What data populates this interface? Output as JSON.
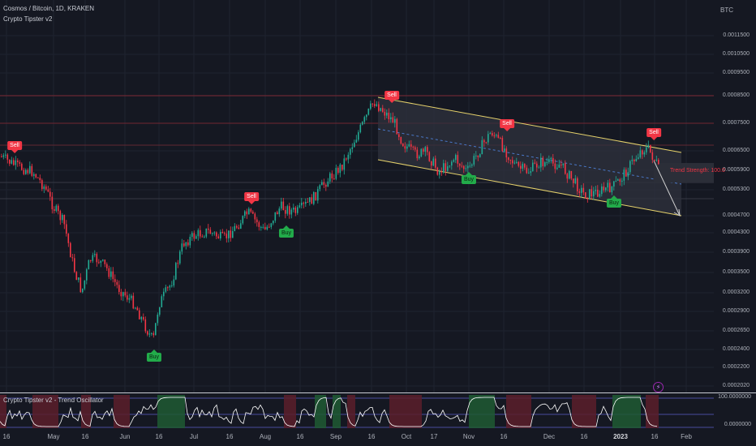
{
  "header": {
    "symbol_line": "Cosmos / Bitcoin, 1D, KRAKEN",
    "indicator_name": "Crypto Tipster v2"
  },
  "price_axis": {
    "currency": "BTC",
    "labels": [
      "0.0011500",
      "0.0010500",
      "0.0009500",
      "0.0008500",
      "0.0007500",
      "0.0006500",
      "0.0005900",
      "0.0005300",
      "0.0004700",
      "0.0004300",
      "0.0003900",
      "0.0003500",
      "0.0003200",
      "0.0002900",
      "0.0002650",
      "0.0002400",
      "0.0002200",
      "0.0002020"
    ]
  },
  "time_axis": {
    "labels": [
      {
        "text": "16",
        "bold": false
      },
      {
        "text": "May",
        "bold": false
      },
      {
        "text": "16",
        "bold": false
      },
      {
        "text": "Jun",
        "bold": false
      },
      {
        "text": "16",
        "bold": false
      },
      {
        "text": "Jul",
        "bold": false
      },
      {
        "text": "16",
        "bold": false
      },
      {
        "text": "Aug",
        "bold": false
      },
      {
        "text": "16",
        "bold": false
      },
      {
        "text": "Sep",
        "bold": false
      },
      {
        "text": "16",
        "bold": false
      },
      {
        "text": "Oct",
        "bold": false
      },
      {
        "text": "17",
        "bold": false
      },
      {
        "text": "Nov",
        "bold": false
      },
      {
        "text": "16",
        "bold": false
      },
      {
        "text": "Dec",
        "bold": false
      },
      {
        "text": "16",
        "bold": false
      },
      {
        "text": "2023",
        "bold": true
      },
      {
        "text": "16",
        "bold": false
      },
      {
        "text": "Feb",
        "bold": false
      }
    ]
  },
  "signals": [
    {
      "type": "sell",
      "label": "Sell"
    },
    {
      "type": "buy",
      "label": "Buy"
    },
    {
      "type": "sell",
      "label": "Sell"
    },
    {
      "type": "buy",
      "label": "Buy"
    },
    {
      "type": "sell",
      "label": "Sell"
    },
    {
      "type": "buy",
      "label": "Buy"
    },
    {
      "type": "sell",
      "label": "Sell"
    },
    {
      "type": "buy",
      "label": "Buy"
    },
    {
      "type": "sell",
      "label": "Sell"
    }
  ],
  "channel": {
    "trend_strength_label": "Trend Strength: 100.0"
  },
  "oscillator": {
    "title": "Crypto Tipster v2 - Trend Oscillator",
    "max_label": "100.0000000",
    "min_label": "0.0000000"
  },
  "colors": {
    "background": "#151822",
    "bull": "#22ab94",
    "bear": "#f23645",
    "channel_line": "#e6d26b",
    "grid": "#1f2330",
    "osc_line": "#ffffff"
  },
  "icons": {
    "alert": "lightning-icon"
  }
}
